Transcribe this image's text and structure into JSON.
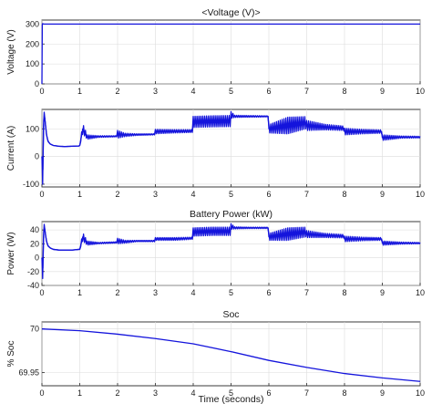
{
  "colors": {
    "series": "#1414dc",
    "axes": "#262626",
    "grid": "#dcdcdc"
  },
  "chart_data": [
    {
      "type": "line",
      "title": "<Voltage (V)>",
      "xlabel": "",
      "ylabel": "Voltage (V)",
      "xlim": [
        0,
        10
      ],
      "ylim": [
        0,
        320
      ],
      "grid": true,
      "x_ticks": [
        0,
        1,
        2,
        3,
        4,
        5,
        6,
        7,
        8,
        9,
        10
      ],
      "y_ticks": [
        0,
        100,
        200,
        300
      ],
      "series": [
        {
          "x": [
            0,
            0.01,
            0.02,
            0.05,
            1,
            2,
            3,
            4,
            5,
            6,
            7,
            8,
            9,
            10
          ],
          "y": [
            0,
            298,
            302,
            300,
            300,
            300,
            300,
            300,
            300,
            300,
            300,
            300,
            300,
            300
          ],
          "color": "#1414dc"
        }
      ]
    },
    {
      "type": "line",
      "title": "",
      "xlabel": "",
      "ylabel": "Current (A)",
      "xlim": [
        0,
        10
      ],
      "ylim": [
        -110,
        170
      ],
      "grid": true,
      "x_ticks": [
        0,
        1,
        2,
        3,
        4,
        5,
        6,
        7,
        8,
        9,
        10
      ],
      "y_ticks": [
        -100,
        0,
        100
      ],
      "series": [
        {
          "x": [
            0,
            0.02,
            0.04,
            0.06,
            0.09,
            0.12,
            0.16,
            0.22,
            0.3,
            0.45,
            0.6,
            0.8,
            0.98,
            1.0,
            1.08,
            1.2,
            1.5,
            1.98,
            2.0,
            2.2,
            2.5,
            2.98,
            3.0,
            3.5,
            3.98,
            4.0,
            4.5,
            4.98,
            5.0,
            5.1,
            5.5,
            5.98,
            6.0,
            6.5,
            6.98,
            7.0,
            7.5,
            7.98,
            8.0,
            8.5,
            8.98,
            9.0,
            9.5,
            10.0
          ],
          "y": [
            0,
            -100,
            110,
            160,
            120,
            80,
            55,
            45,
            40,
            37,
            36,
            37,
            38,
            40,
            100,
            70,
            72,
            73,
            80,
            78,
            79,
            80,
            90,
            91,
            92,
            125,
            127,
            128,
            150,
            145,
            145,
            145,
            100,
            112,
            122,
            112,
            106,
            102,
            90,
            90,
            90,
            68,
            70,
            70
          ],
          "band": [
            0,
            0,
            0,
            0,
            0,
            0,
            0,
            0,
            0,
            0,
            0,
            0,
            0,
            0,
            18,
            8,
            3,
            2,
            14,
            6,
            3,
            2,
            8,
            6,
            5,
            20,
            20,
            20,
            12,
            4,
            3,
            2,
            15,
            30,
            22,
            18,
            10,
            8,
            12,
            8,
            6,
            10,
            4,
            3
          ],
          "color": "#1414dc"
        }
      ]
    },
    {
      "type": "line",
      "title": "Battery Power (kW)",
      "xlabel": "",
      "ylabel": "Power (W)",
      "xlim": [
        0,
        10
      ],
      "ylim": [
        -40,
        52
      ],
      "grid": true,
      "x_ticks": [
        0,
        1,
        2,
        3,
        4,
        5,
        6,
        7,
        8,
        9,
        10
      ],
      "y_ticks": [
        -40,
        -20,
        0,
        20,
        40
      ],
      "series": [
        {
          "x": [
            0,
            0.02,
            0.04,
            0.06,
            0.09,
            0.12,
            0.16,
            0.22,
            0.3,
            0.45,
            0.6,
            0.8,
            0.98,
            1.0,
            1.08,
            1.2,
            1.5,
            1.98,
            2.0,
            2.2,
            2.5,
            2.98,
            3.0,
            3.5,
            3.98,
            4.0,
            4.5,
            4.98,
            5.0,
            5.1,
            5.5,
            5.98,
            6.0,
            6.5,
            6.98,
            7.0,
            7.5,
            7.98,
            8.0,
            8.5,
            8.98,
            9.0,
            9.5,
            10.0
          ],
          "y": [
            0,
            -30,
            30,
            48,
            35,
            24,
            17,
            14,
            12,
            11,
            11,
            11,
            12,
            12,
            30,
            21,
            21,
            22,
            24,
            23,
            24,
            24,
            27,
            27,
            28,
            37,
            38,
            38,
            45,
            43,
            43,
            43,
            30,
            34,
            37,
            34,
            32,
            31,
            27,
            27,
            27,
            21,
            21,
            21
          ],
          "band": [
            0,
            0,
            0,
            0,
            0,
            0,
            0,
            0,
            0,
            0,
            0,
            0,
            0,
            0,
            6,
            3,
            1,
            1,
            4,
            2,
            1,
            1,
            2,
            2,
            1.5,
            6,
            6,
            6,
            4,
            1.5,
            1,
            1,
            5,
            9,
            7,
            5,
            3,
            2.5,
            4,
            2.5,
            2,
            3,
            1.5,
            1
          ],
          "color": "#1414dc"
        }
      ]
    },
    {
      "type": "line",
      "title": "Soc",
      "xlabel": "Time (seconds)",
      "ylabel": "% Soc",
      "xlim": [
        0,
        10
      ],
      "ylim": [
        69.935,
        70.008
      ],
      "grid": true,
      "x_ticks": [
        0,
        1,
        2,
        3,
        4,
        5,
        6,
        7,
        8,
        9,
        10
      ],
      "y_ticks": [
        69.95,
        70
      ],
      "series": [
        {
          "x": [
            0,
            1,
            2,
            3,
            4,
            5,
            6,
            7,
            8,
            9,
            10
          ],
          "y": [
            70.0,
            69.998,
            69.994,
            69.989,
            69.983,
            69.974,
            69.964,
            69.956,
            69.949,
            69.944,
            69.94
          ],
          "color": "#1414dc"
        }
      ]
    }
  ]
}
